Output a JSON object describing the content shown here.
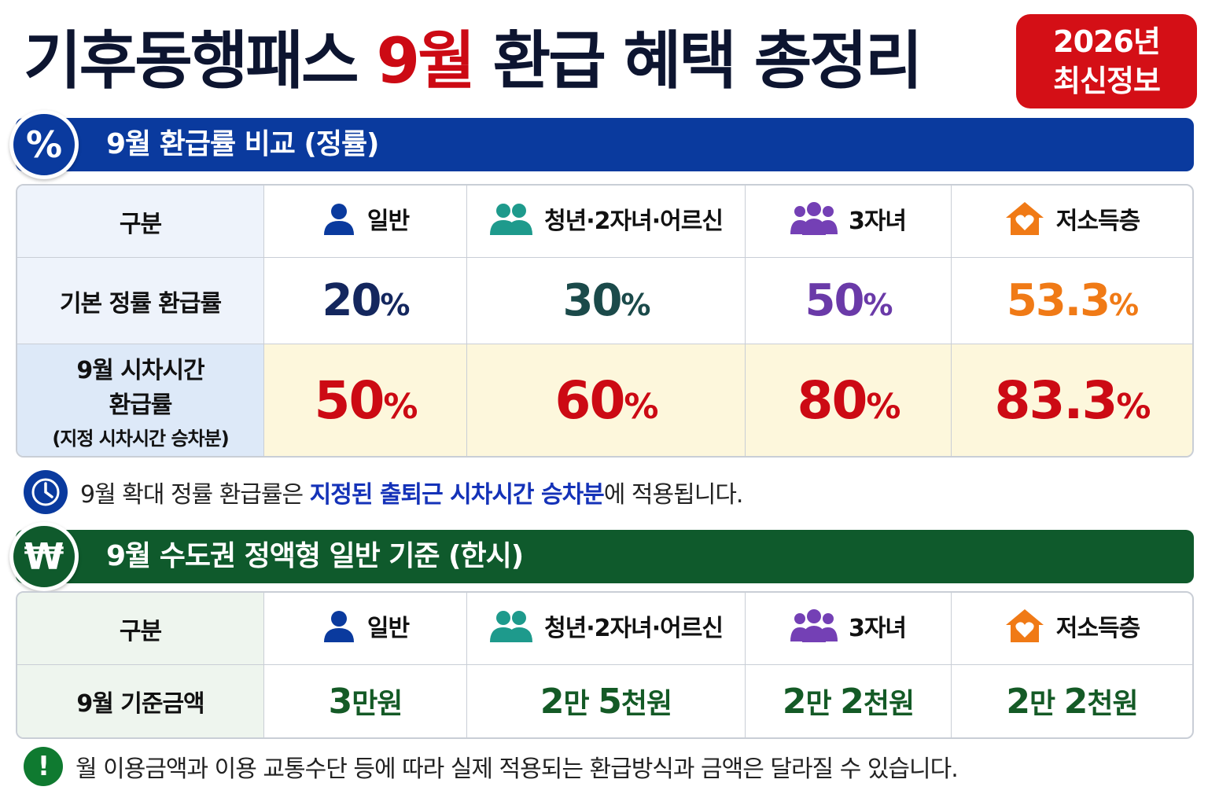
{
  "header": {
    "title_pre": "기후동행패스",
    "title_accent": "9월",
    "title_post": "환급 혜택 총정리",
    "badge_line1": "2026년",
    "badge_line2": "최신정보"
  },
  "rate_section": {
    "icon": "%",
    "title": "9월 환급률 비교 (정률)",
    "corner_label": "구분",
    "columns": [
      "일반",
      "청년·2자녀·어르신",
      "3자녀",
      "저소득층"
    ],
    "row_base_label": "기본 정률 환급률",
    "row_base_values": [
      "20",
      "30",
      "50",
      "53.3"
    ],
    "row_sep_label_1": "9월 시차시간",
    "row_sep_label_2": "환급률",
    "row_sep_label_3": "(지정 시차시간 승차분)",
    "row_sep_values": [
      "50",
      "60",
      "80",
      "83.3"
    ],
    "unit": "%"
  },
  "note1": {
    "pre": "9월 확대 정률 환급률은 ",
    "highlight": "지정된 출퇴근 시차시간 승차분",
    "post": "에 적용됩니다."
  },
  "amount_section": {
    "icon": "₩",
    "title": "9월 수도권 정액형 일반 기준 (한시)",
    "corner_label": "구분",
    "columns": [
      "일반",
      "청년·2자녀·어르신",
      "3자녀",
      "저소득층"
    ],
    "row_label": "9월 기준금액",
    "values": [
      {
        "n1": "3",
        "u1": "만원",
        "n2": "",
        "u2": ""
      },
      {
        "n1": "2",
        "u1": "만 ",
        "n2": "5",
        "u2": "천원"
      },
      {
        "n1": "2",
        "u1": "만 ",
        "n2": "2",
        "u2": "천원"
      },
      {
        "n1": "2",
        "u1": "만 ",
        "n2": "2",
        "u2": "천원"
      }
    ]
  },
  "note2": {
    "icon": "!",
    "text": "월 이용금액과 이용 교통수단 등에 따라 실제 적용되는 환급방식과 금액은 달라질 수 있습니다."
  },
  "colors": {
    "accent_red": "#cc0a14",
    "blue_bar": "#0a3a9e",
    "green_bar": "#0f5a2c",
    "navy": "#14275e",
    "teal": "#1b4a4a",
    "purple": "#6a3aa8",
    "orange": "#f07a16",
    "amount_green": "#145a26"
  },
  "icons": [
    "person-icon",
    "two-people-icon",
    "group-icon",
    "house-heart-icon",
    "clock-icon",
    "warning-icon"
  ]
}
